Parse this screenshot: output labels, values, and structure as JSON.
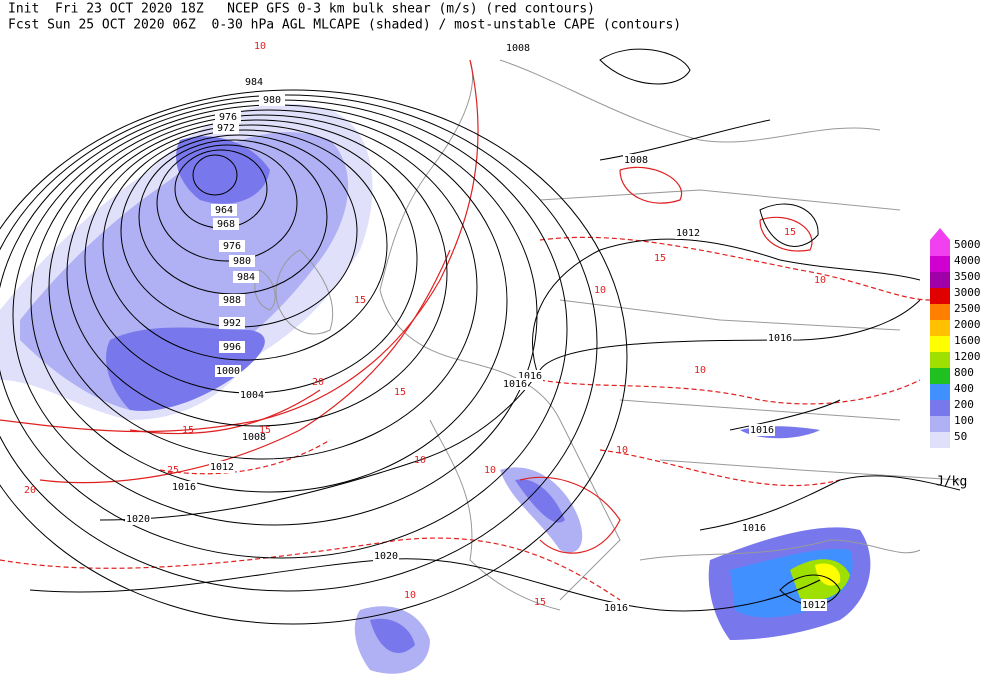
{
  "header": {
    "line1": "Init  Fri 23 OCT 2020 18Z   NCEP GFS 0-3 km bulk shear (m/s) (red contours)",
    "line2": "Fcst Sun 25 OCT 2020 06Z  0-30 hPa AGL MLCAPE (shaded) / most-unstable CAPE (contours)"
  },
  "colorbar": {
    "levels": [
      5000,
      4000,
      3500,
      3000,
      2500,
      2000,
      1600,
      1200,
      800,
      400,
      200,
      100,
      50
    ],
    "colors": [
      "#f040f0",
      "#d000d0",
      "#a000a8",
      "#e00000",
      "#ff8000",
      "#ffc000",
      "#ffff00",
      "#a0e000",
      "#20c020",
      "#4090ff",
      "#7878ec",
      "#b0b0f4",
      "#e0e0fa"
    ],
    "unit": "J/kg"
  },
  "isobar_labels": [
    "1008",
    "984",
    "980",
    "976",
    "972",
    "964",
    "968",
    "976",
    "980",
    "984",
    "988",
    "992",
    "996",
    "1000",
    "1004",
    "1008",
    "1012",
    "1016",
    "1020",
    "1020",
    "1016",
    "1012",
    "1016",
    "1016",
    "1016",
    "1016",
    "1016",
    "1012",
    "1008"
  ],
  "shear_labels": [
    "10",
    "15",
    "15",
    "20",
    "15",
    "20",
    "25",
    "15",
    "10",
    "10",
    "15",
    "10",
    "10",
    "15",
    "10",
    "15",
    "10",
    "10"
  ]
}
